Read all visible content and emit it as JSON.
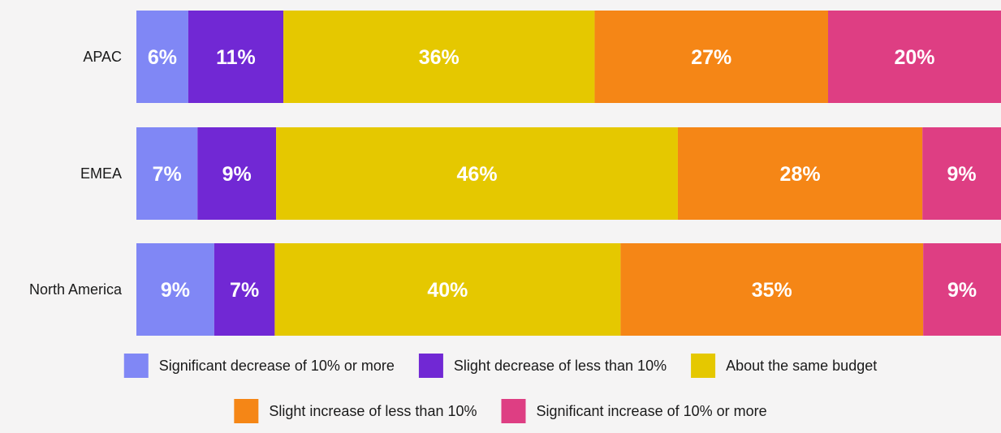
{
  "chart_data": {
    "type": "bar",
    "orientation": "horizontal",
    "stacked": true,
    "categories": [
      "APAC",
      "EMEA",
      "North America"
    ],
    "series": [
      {
        "name": "Significant decrease of 10% or more",
        "color": "#8087f5",
        "values": [
          6,
          7,
          9
        ]
      },
      {
        "name": "Slight decrease of less than 10%",
        "color": "#7128d4",
        "values": [
          11,
          9,
          7
        ]
      },
      {
        "name": "About the same budget",
        "color": "#e5c800",
        "values": [
          36,
          46,
          40
        ]
      },
      {
        "name": "Slight increase of less than 10%",
        "color": "#f58616",
        "values": [
          27,
          28,
          35
        ]
      },
      {
        "name": "Significant increase of 10% or more",
        "color": "#de3e83",
        "values": [
          20,
          9,
          9
        ]
      }
    ],
    "data_labels": [
      [
        "6%",
        "11%",
        "36%",
        "27%",
        "20%"
      ],
      [
        "7%",
        "9%",
        "46%",
        "28%",
        "9%"
      ],
      [
        "9%",
        "7%",
        "40%",
        "35%",
        "9%"
      ]
    ],
    "title": "",
    "xlabel": "",
    "ylabel": "",
    "grid": false,
    "legend_position": "bottom"
  }
}
